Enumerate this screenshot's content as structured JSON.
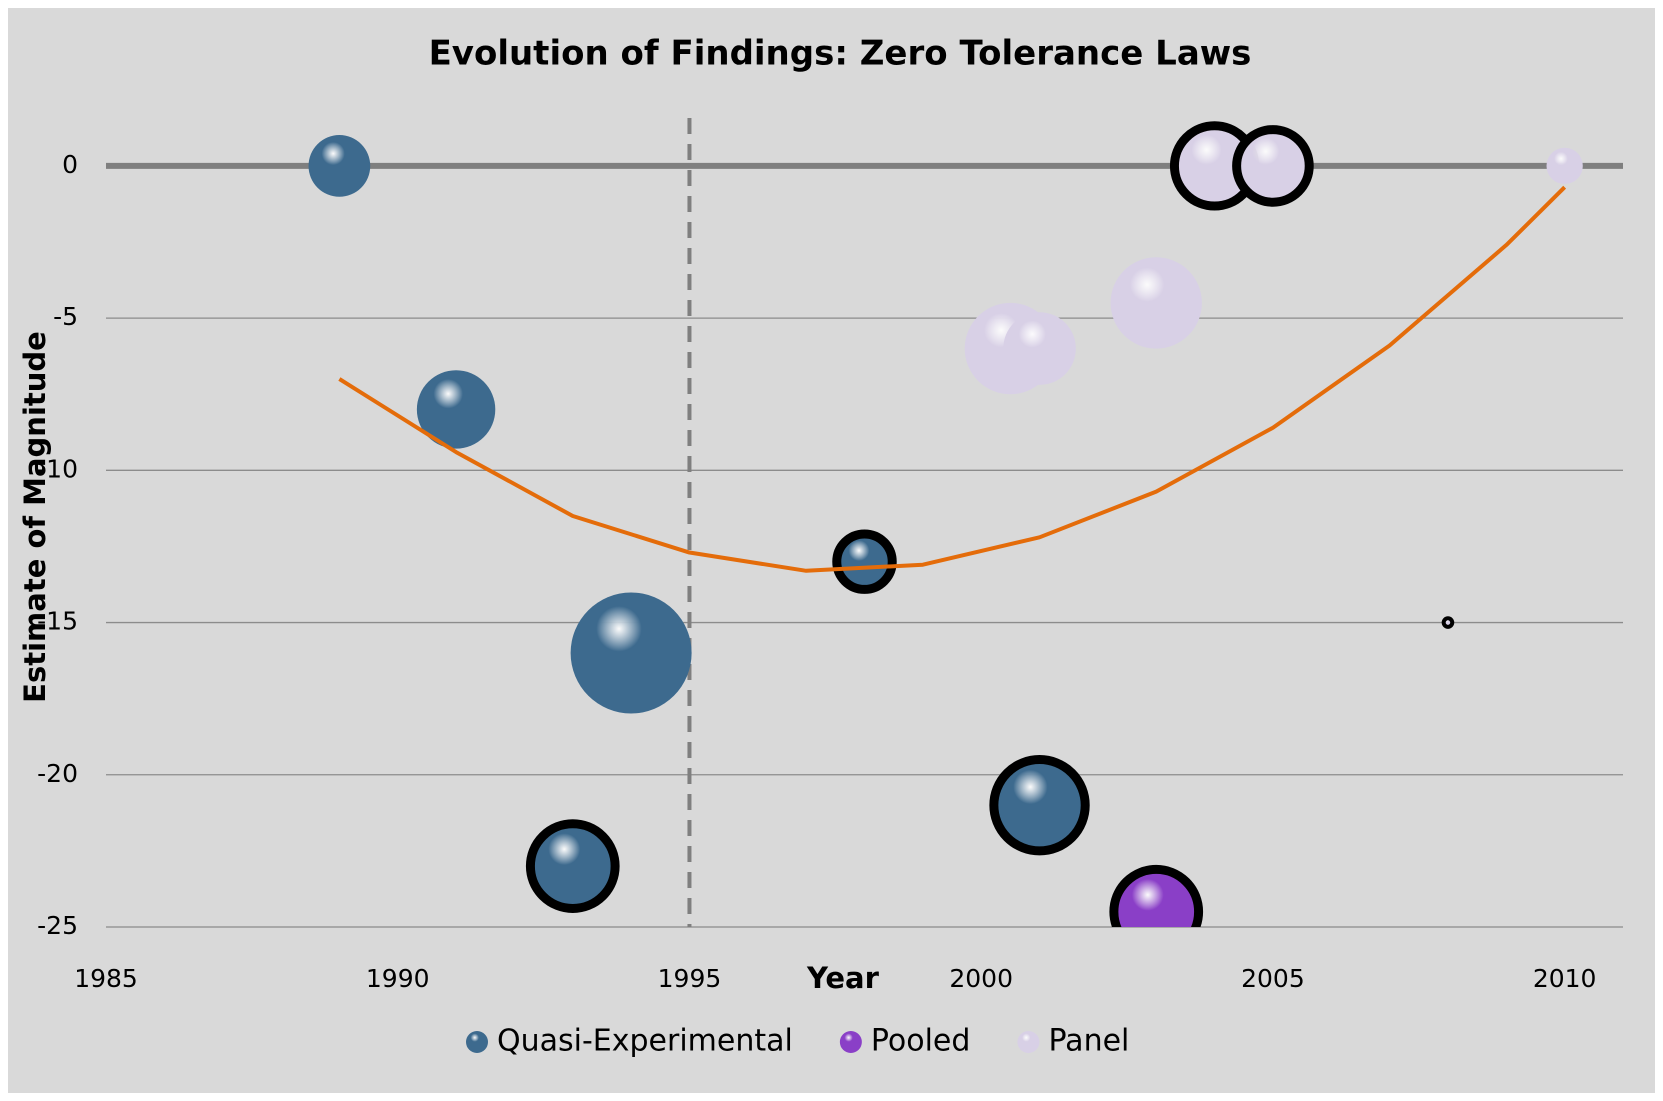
{
  "chart_data": {
    "type": "bubble",
    "title": "Evolution of Findings: Zero Tolerance Laws",
    "x_label": "Year",
    "y_label": "Estimate of Magnitude",
    "xlim": [
      1985,
      2011
    ],
    "xticks": [
      1985,
      1990,
      1995,
      2000,
      2005,
      2010
    ],
    "ylim": [
      -25,
      2
    ],
    "yticks": [
      0,
      -5,
      -10,
      -15,
      -20,
      -25
    ],
    "grid": true,
    "reference_x": 1995,
    "series": [
      {
        "name": "Quasi-Experimental",
        "color": "#3d6a8e",
        "x": [
          1989,
          1991,
          1993,
          1994,
          1998,
          2001
        ],
        "values": [
          0,
          -8,
          -23,
          -16,
          -13,
          -21
        ],
        "sizes": [
          26,
          42,
          49,
          100,
          21,
          57
        ],
        "outlined": [
          false,
          false,
          true,
          false,
          true,
          true
        ]
      },
      {
        "name": "Pooled",
        "color": "#8a3fc7",
        "x": [
          2003
        ],
        "values": [
          -24.5
        ],
        "sizes": [
          49
        ],
        "outlined": [
          true
        ]
      },
      {
        "name": "Panel",
        "color": "#d8d0e6",
        "x": [
          2000.5,
          2001,
          2003,
          2004,
          2005,
          2010,
          2008
        ],
        "values": [
          -6,
          -6,
          -4.5,
          0,
          0,
          0,
          -15
        ],
        "sizes": [
          57,
          36,
          57,
          44,
          36,
          9,
          0.5
        ],
        "outlined": [
          false,
          false,
          false,
          true,
          true,
          false,
          true
        ]
      }
    ],
    "trend": {
      "color": "#e46c0a",
      "x": [
        1989,
        1991,
        1993,
        1995,
        1997,
        1999,
        2001,
        2003,
        2005,
        2007,
        2009,
        2010
      ],
      "values": [
        -7,
        -9.4,
        -11.5,
        -12.7,
        -13.3,
        -13.1,
        -12.2,
        -10.7,
        -8.6,
        -5.9,
        -2.6,
        -0.7
      ]
    },
    "legend": "bottom"
  }
}
